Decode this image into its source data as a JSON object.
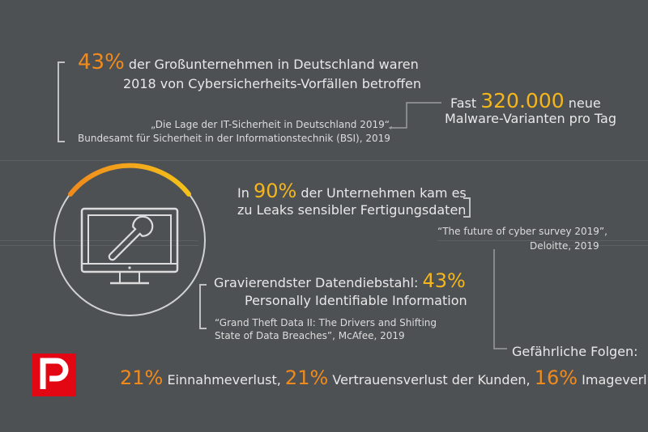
{
  "stat1": {
    "value": "43%",
    "line1": "der Großunternehmen in Deutschland waren",
    "line2": "2018 von Cybersicherheits-Vorfällen betroffen",
    "source_line1": "„Die Lage der IT-Sicherheit in Deutschland 2019“,",
    "source_line2": "Bundesamt für Sicherheit in der Informationstechnik (BSI), 2019"
  },
  "stat2": {
    "prefix": "Fast",
    "value": "320.000",
    "suffix": "neue",
    "line2": "Malware-Varianten pro Tag"
  },
  "stat3": {
    "prefix": "In",
    "value": "90%",
    "suffix": "der Unternehmen kam es",
    "line2": "zu Leaks sensibler Fertigungsdaten",
    "source_line1": "“The future of cyber survey 2019”,",
    "source_line2": "Deloitte, 2019"
  },
  "stat4": {
    "prefix": "Gravierendster Datendiebstahl:",
    "value": "43%",
    "line2": "Personally Identifiable Information",
    "source_line1": "“Grand Theft Data II: The Drivers and Shifting",
    "source_line2": "State of Data Breaches”, McAfee, 2019"
  },
  "consequences": {
    "heading": "Gefährliche Folgen:",
    "items": [
      {
        "value": "21%",
        "label": "Einnahmeverlust,"
      },
      {
        "value": "21%",
        "label": "Vertrauensverlust der Kunden,"
      },
      {
        "value": "16%",
        "label": "Imageverlust"
      }
    ]
  },
  "icons": {
    "monitor": "monitor-wrench-icon",
    "logo": "brand-p-logo"
  },
  "colors": {
    "background": "#4e5154",
    "accent_orange": "#f08a1c",
    "accent_yellow": "#f4b61a",
    "logo_red": "#e30613"
  }
}
